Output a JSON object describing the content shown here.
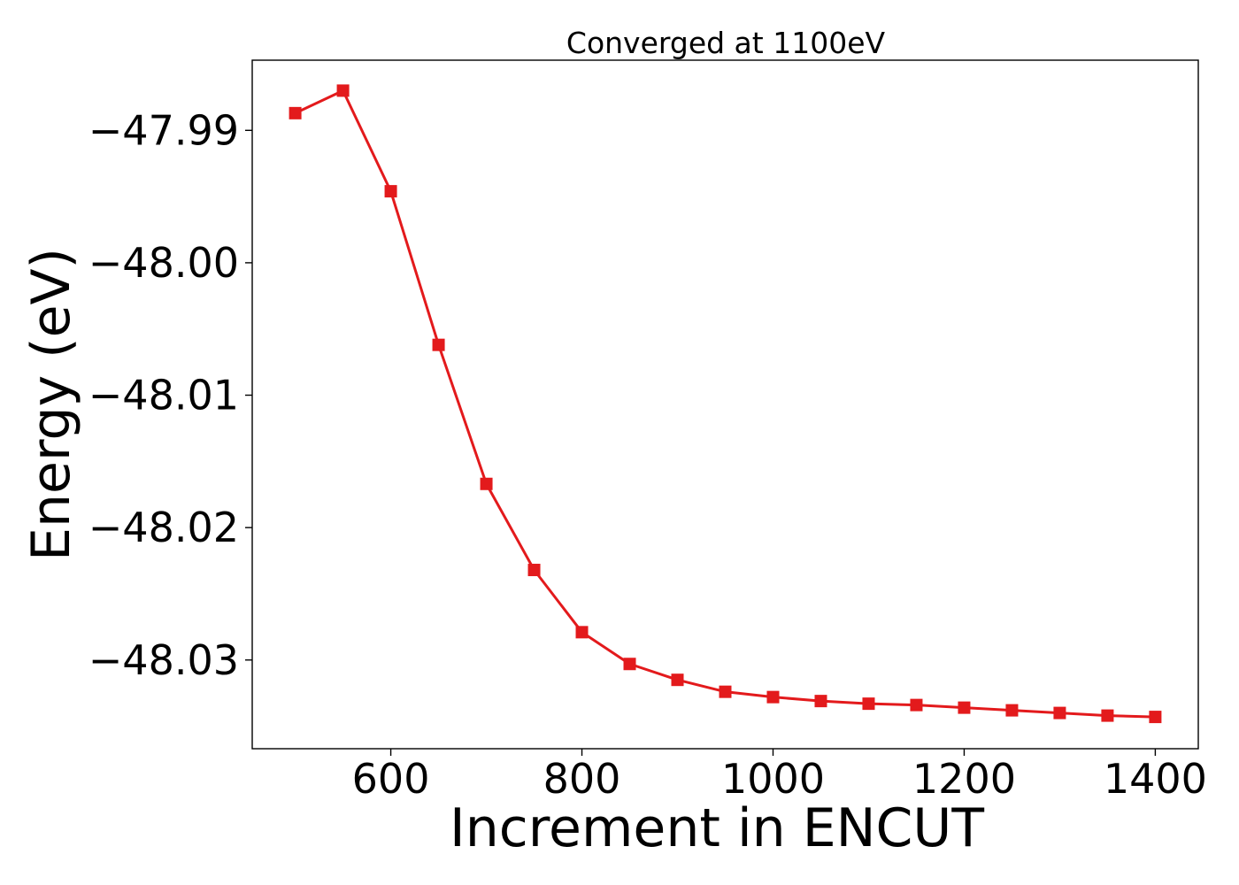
{
  "chart_data": {
    "type": "line",
    "title": "Converged at 1100eV",
    "xlabel": "Increment in ENCUT",
    "ylabel": "Energy (eV)",
    "xlim": [
      455,
      1445
    ],
    "ylim": [
      -48.0367,
      -47.9847
    ],
    "x_ticks": [
      600,
      800,
      1000,
      1200,
      1400
    ],
    "x_tick_labels": [
      "600",
      "800",
      "1000",
      "1200",
      "1400"
    ],
    "y_ticks": [
      -47.99,
      -48.0,
      -48.01,
      -48.02,
      -48.03
    ],
    "y_tick_labels": [
      "−47.99",
      "−48.00",
      "−48.01",
      "−48.02",
      "−48.03"
    ],
    "grid": false,
    "series": [
      {
        "color": "#e31a1c",
        "marker": "square",
        "x": [
          500,
          550,
          600,
          650,
          700,
          750,
          800,
          850,
          900,
          950,
          1000,
          1050,
          1100,
          1150,
          1200,
          1250,
          1300,
          1350,
          1400
        ],
        "y": [
          -47.9887,
          -47.987,
          -47.9946,
          -48.0062,
          -48.0167,
          -48.0232,
          -48.0279,
          -48.0303,
          -48.0315,
          -48.0324,
          -48.0328,
          -48.0331,
          -48.0333,
          -48.0334,
          -48.0336,
          -48.0338,
          -48.034,
          -48.0342,
          -48.0343
        ]
      }
    ]
  }
}
